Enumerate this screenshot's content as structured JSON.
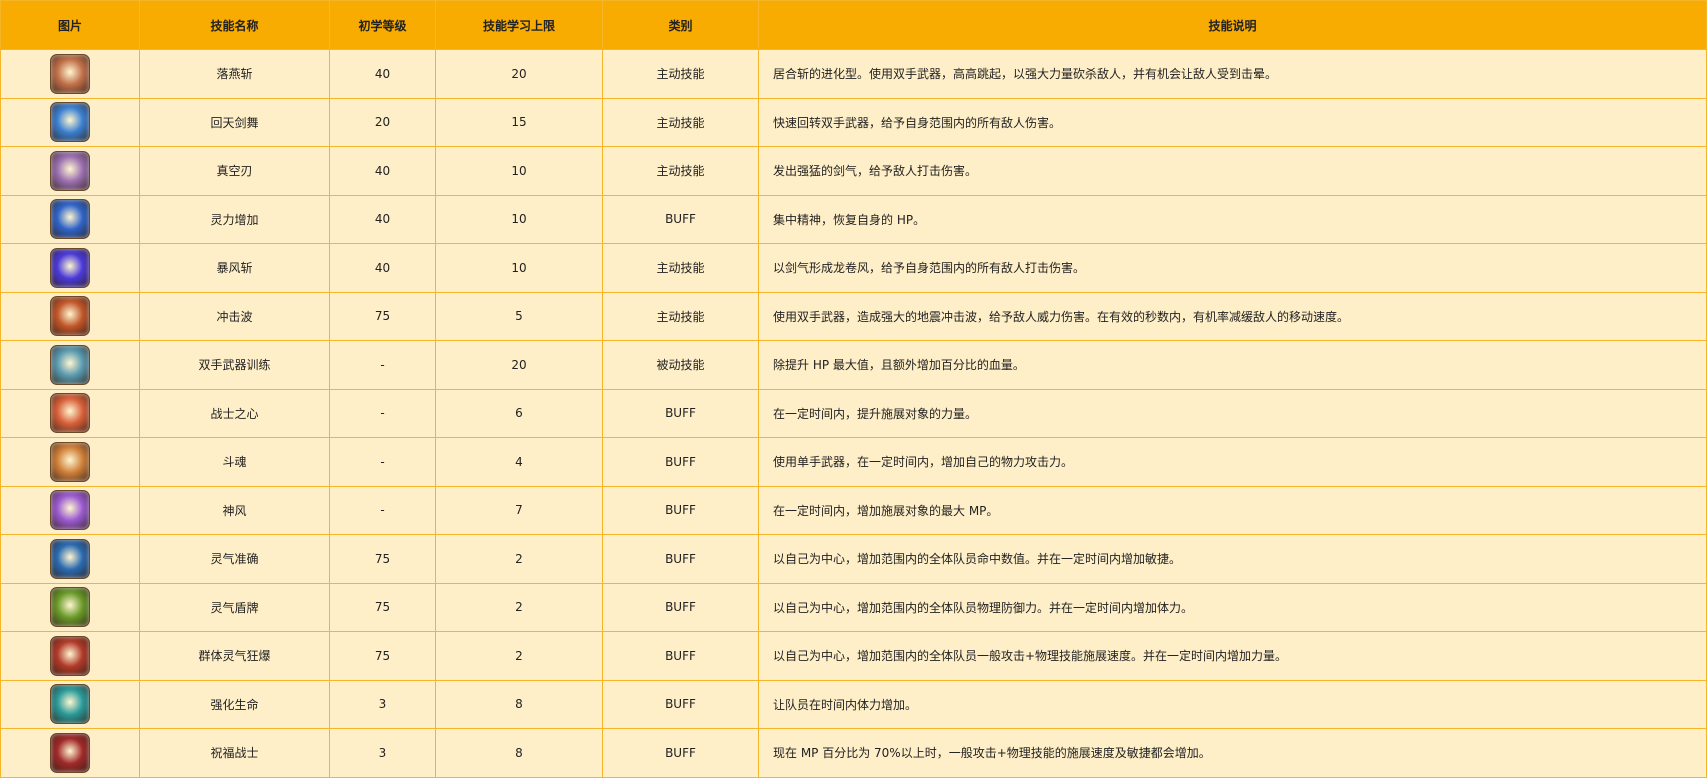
{
  "headers": [
    "图片",
    "技能名称",
    "初学等级",
    "技能学习上限",
    "类别",
    "技能说明"
  ],
  "rows": [
    {
      "icon": "sword-slash-icon",
      "color": "#c0704a",
      "name": "落燕斩",
      "level": "40",
      "max": "20",
      "type": "主动技能",
      "desc": "居合斩的进化型。使用双手武器，高高跳起，以强大力量砍杀敌人，并有机会让敌人受到击晕。"
    },
    {
      "icon": "whirlwind-icon",
      "color": "#3a7fd0",
      "name": "回天剑舞",
      "level": "20",
      "max": "15",
      "type": "主动技能",
      "desc": "快速回转双手武器，给予自身范围内的所有敌人伤害。"
    },
    {
      "icon": "sword-wave-icon",
      "color": "#9a6fb0",
      "name": "真空刃",
      "level": "40",
      "max": "10",
      "type": "主动技能",
      "desc": "发出强猛的剑气，给予敌人打击伤害。"
    },
    {
      "icon": "spirit-hand-icon",
      "color": "#2f63c8",
      "name": "灵力增加",
      "level": "40",
      "max": "10",
      "type": "BUFF",
      "desc": "集中精神，恢复自身的 HP。"
    },
    {
      "icon": "star-burst-icon",
      "color": "#4a3ad8",
      "name": "暴风斩",
      "level": "40",
      "max": "10",
      "type": "主动技能",
      "desc": "以剑气形成龙卷风，给予自身范围内的所有敌人打击伤害。"
    },
    {
      "icon": "shockwave-icon",
      "color": "#c0562a",
      "name": "冲击波",
      "level": "75",
      "max": "5",
      "type": "主动技能",
      "desc": "使用双手武器，造成强大的地震冲击波，给予敌人威力伤害。在有效的秒数内，有机率减缓敌人的移动速度。"
    },
    {
      "icon": "two-hand-weapon-icon",
      "color": "#5a9ab0",
      "name": "双手武器训练",
      "level": "-",
      "max": "20",
      "type": "被动技能",
      "desc": "除提升 HP 最大值，且额外增加百分比的血量。"
    },
    {
      "icon": "warrior-heart-icon",
      "color": "#d8603a",
      "name": "战士之心",
      "level": "-",
      "max": "6",
      "type": "BUFF",
      "desc": "在一定时间内，提升施展对象的力量。"
    },
    {
      "icon": "fighting-spirit-icon",
      "color": "#d0803a",
      "name": "斗魂",
      "level": "-",
      "max": "4",
      "type": "BUFF",
      "desc": "使用单手武器，在一定时间内，增加自己的物力攻击力。"
    },
    {
      "icon": "divine-wind-icon",
      "color": "#9a5ad0",
      "name": "神风",
      "level": "-",
      "max": "7",
      "type": "BUFF",
      "desc": "在一定时间内，增加施展对象的最大 MP。"
    },
    {
      "icon": "aura-accuracy-icon",
      "color": "#2a6ab0",
      "name": "灵气准确",
      "level": "75",
      "max": "2",
      "type": "BUFF",
      "desc": "以自己为中心，增加范围内的全体队员命中数值。并在一定时间内增加敏捷。"
    },
    {
      "icon": "aura-shield-icon",
      "color": "#6a9a2a",
      "name": "灵气盾牌",
      "level": "75",
      "max": "2",
      "type": "BUFF",
      "desc": "以自己为中心，增加范围内的全体队员物理防御力。并在一定时间内增加体力。"
    },
    {
      "icon": "aura-frenzy-icon",
      "color": "#b03a2a",
      "name": "群体灵气狂爆",
      "level": "75",
      "max": "2",
      "type": "BUFF",
      "desc": "以自己为中心，增加范围内的全体队员一般攻击+物理技能施展速度。并在一定时间内增加力量。"
    },
    {
      "icon": "strengthen-life-icon",
      "color": "#2a9a9a",
      "name": "强化生命",
      "level": "3",
      "max": "8",
      "type": "BUFF",
      "desc": "让队员在时间内体力增加。"
    },
    {
      "icon": "blessed-warrior-icon",
      "color": "#a02a2a",
      "name": "祝福战士",
      "level": "3",
      "max": "8",
      "type": "BUFF",
      "desc": "现在 MP 百分比为 70%以上时，一般攻击+物理技能的施展速度及敏捷都会增加。"
    }
  ]
}
